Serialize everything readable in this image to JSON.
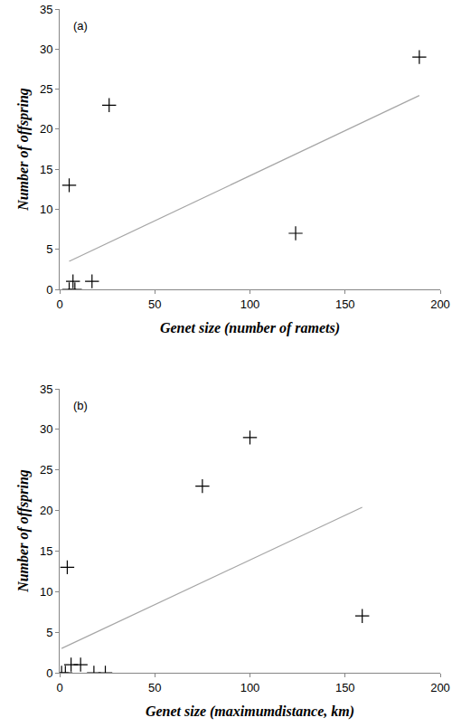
{
  "chart_data": [
    {
      "type": "scatter",
      "annotations": [
        "(a)"
      ],
      "x_label": "Genet size (number of ramets)",
      "y_label": "Number of offspring",
      "xlim": [
        0,
        200
      ],
      "xticks": [
        0,
        50,
        100,
        150,
        200
      ],
      "ylim": [
        0,
        35
      ],
      "yticks": [
        0,
        5,
        10,
        15,
        20,
        25,
        30,
        35
      ],
      "grid": false,
      "series": [
        {
          "type": "scatter",
          "marker": "cross",
          "color": "#000000",
          "x": [
            5,
            7,
            5,
            8,
            17,
            26,
            124,
            189
          ],
          "values": [
            13,
            1,
            0,
            0,
            1,
            23,
            7,
            29
          ]
        },
        {
          "type": "line",
          "line_style": "solid",
          "color": "#a6a6a6",
          "x": [
            5,
            189
          ],
          "values": [
            3.5,
            24.2
          ]
        }
      ]
    },
    {
      "type": "scatter",
      "annotations": [
        "(b)"
      ],
      "x_label": "Genet size (maximumdistance, km)",
      "y_label": "Number of offspring",
      "xlim": [
        0,
        200
      ],
      "xticks": [
        0,
        50,
        100,
        150,
        200
      ],
      "ylim": [
        0,
        35
      ],
      "yticks": [
        0,
        5,
        10,
        15,
        20,
        25,
        30,
        35
      ],
      "grid": false,
      "series": [
        {
          "type": "scatter",
          "marker": "cross",
          "color": "#000000",
          "x": [
            1,
            3,
            4,
            6,
            11,
            18,
            24,
            75,
            100,
            159
          ],
          "values": [
            0,
            0,
            13,
            1,
            1,
            0,
            0,
            23,
            29,
            7
          ]
        },
        {
          "type": "line",
          "line_style": "solid",
          "color": "#a6a6a6",
          "x": [
            1,
            159
          ],
          "values": [
            3,
            20.4
          ]
        }
      ]
    }
  ]
}
